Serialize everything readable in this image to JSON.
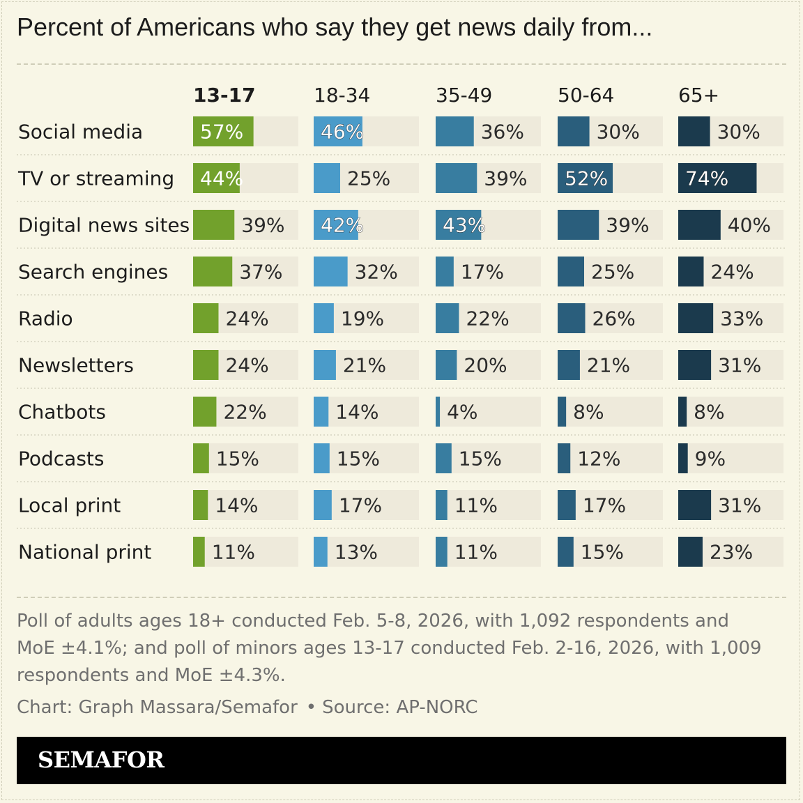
{
  "title": "Percent of Americans who say they get news daily from...",
  "chart_data": {
    "type": "bar",
    "categories": [
      "Social media",
      "TV or streaming",
      "Digital news sites",
      "Search engines",
      "Radio",
      "Newsletters",
      "Chatbots",
      "Podcasts",
      "Local print",
      "National print"
    ],
    "series": [
      {
        "name": "13-17",
        "color": "#72a12c",
        "values": [
          57,
          44,
          39,
          37,
          24,
          24,
          22,
          15,
          14,
          11
        ]
      },
      {
        "name": "18-34",
        "color": "#4a9bc9",
        "values": [
          46,
          25,
          42,
          32,
          19,
          21,
          14,
          15,
          17,
          13
        ]
      },
      {
        "name": "35-49",
        "color": "#387da0",
        "values": [
          36,
          39,
          43,
          17,
          22,
          20,
          4,
          15,
          11,
          11
        ]
      },
      {
        "name": "50-64",
        "color": "#2a5e7c",
        "values": [
          30,
          52,
          39,
          25,
          26,
          21,
          8,
          12,
          17,
          15
        ]
      },
      {
        "name": "65+",
        "color": "#1b3a4d",
        "values": [
          30,
          74,
          40,
          24,
          33,
          31,
          8,
          9,
          31,
          23
        ]
      }
    ],
    "value_suffix": "%",
    "xlim": [
      0,
      100
    ],
    "highlighted_series": "13-17",
    "track_color": "#eeeadb"
  },
  "note": "Poll of adults ages 18+ conducted Feb. 5-8, 2026, with 1,092 respondents and MoE ±4.1%; and poll of minors ages 13-17 conducted Feb. 2-16, 2026, with 1,009 respondents and MoE ±4.3%.",
  "credit": {
    "chart": "Chart: Graph Massara/Semafor",
    "separator": "•",
    "source": "Source: AP-NORC"
  },
  "brand": "SEMAFOR"
}
